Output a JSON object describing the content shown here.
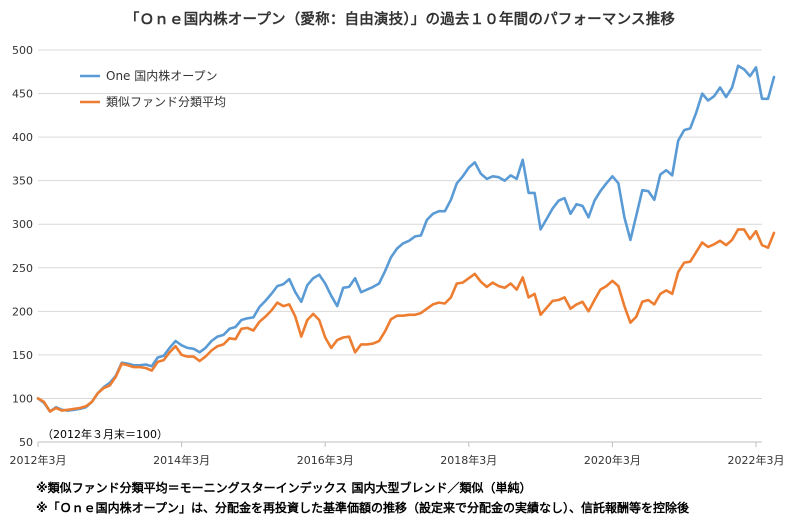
{
  "title": "「Ｏｎｅ国内株オープン（愛称：自由演技）」の過去１０年間のパフォーマンス推移",
  "notes": [
    "※類似ファンド分類平均＝モーニングスターインデックス 国内大型ブレンド／類似（単純）",
    "※「Ｏｎｅ国内株オープン」は、分配金を再投資した基準価額の推移（設定来で分配金の実績なし）、信託報酬等を控除後"
  ],
  "chart_data": {
    "type": "line",
    "title": "「Ｏｎｅ国内株オープン（愛称：自由演技）」の過去１０年間のパフォーマンス推移",
    "xlabel": "",
    "ylabel": "",
    "ylim": [
      50,
      500
    ],
    "yticks": [
      50,
      100,
      150,
      200,
      250,
      300,
      350,
      400,
      450,
      500
    ],
    "xlim": [
      0,
      121
    ],
    "xticks": [
      {
        "pos": 0,
        "label": "2012年3月"
      },
      {
        "pos": 24,
        "label": "2014年3月"
      },
      {
        "pos": 48,
        "label": "2016年3月"
      },
      {
        "pos": 72,
        "label": "2018年3月"
      },
      {
        "pos": 96,
        "label": "2020年3月"
      },
      {
        "pos": 120,
        "label": "2022年3月"
      }
    ],
    "grid": "horizontal",
    "legend": "top-left",
    "annotation": "（2012年３月末＝100）",
    "series": [
      {
        "name": "One 国内株オープン",
        "color": "#5b9bd5",
        "values": [
          100,
          95,
          85,
          90,
          87,
          86,
          87,
          88,
          90,
          96,
          106,
          113,
          118,
          126,
          141,
          140,
          138,
          138,
          139,
          137,
          147,
          149,
          158,
          166,
          161,
          158,
          157,
          153,
          158,
          166,
          171,
          173,
          180,
          182,
          190,
          192,
          193,
          205,
          212,
          220,
          229,
          231,
          237,
          222,
          211,
          230,
          238,
          242,
          232,
          218,
          206,
          227,
          228,
          238,
          222,
          225,
          228,
          232,
          246,
          262,
          272,
          278,
          281,
          286,
          287,
          305,
          312,
          315,
          315,
          328,
          347,
          355,
          365,
          371,
          358,
          352,
          355,
          354,
          350,
          356,
          352,
          374,
          336,
          336,
          294,
          306,
          318,
          327,
          330,
          312,
          323,
          321,
          308,
          327,
          338,
          347,
          355,
          347,
          308,
          282,
          310,
          339,
          338,
          328,
          357,
          362,
          356,
          396,
          408,
          410,
          428,
          450,
          442,
          447,
          457,
          446,
          457,
          482,
          478,
          470,
          480,
          444,
          444,
          469
        ]
      },
      {
        "name": "類似ファンド分類平均",
        "color": "#ed7d31",
        "values": [
          100,
          96,
          85,
          89,
          86,
          87,
          88,
          89,
          91,
          96,
          106,
          112,
          115,
          125,
          140,
          138,
          136,
          136,
          135,
          132,
          142,
          144,
          153,
          160,
          150,
          148,
          148,
          143,
          148,
          155,
          160,
          162,
          169,
          168,
          180,
          181,
          178,
          188,
          194,
          201,
          210,
          206,
          208,
          194,
          171,
          190,
          197,
          190,
          170,
          158,
          167,
          170,
          171,
          153,
          162,
          162,
          163,
          166,
          177,
          191,
          195,
          195,
          196,
          196,
          198,
          203,
          208,
          210,
          209,
          216,
          232,
          233,
          238,
          243,
          234,
          228,
          233,
          229,
          227,
          232,
          225,
          239,
          216,
          220,
          196,
          204,
          212,
          213,
          216,
          203,
          208,
          211,
          200,
          213,
          225,
          229,
          235,
          229,
          206,
          187,
          194,
          211,
          213,
          208,
          220,
          224,
          220,
          245,
          256,
          257,
          268,
          279,
          274,
          277,
          281,
          276,
          282,
          294,
          294,
          283,
          292,
          276,
          273,
          290
        ]
      }
    ]
  }
}
